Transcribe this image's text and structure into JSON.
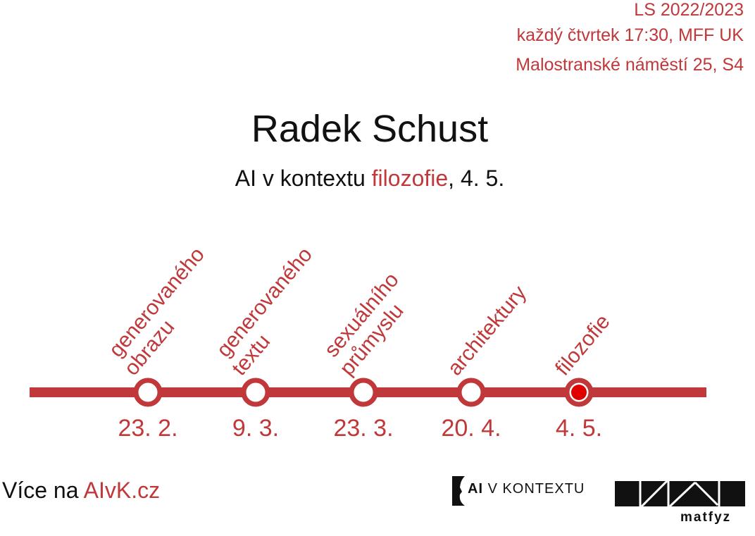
{
  "header": {
    "semester": "LS 2022/2023",
    "schedule": "každý čtvrtek 17:30, MFF UK",
    "address": "Malostranské náměstí 25, S4"
  },
  "speaker": "Radek Schust",
  "subtitle": {
    "prefix": "AI v kontextu ",
    "topic": "filozofie",
    "suffix": ", 4. 5."
  },
  "timeline": {
    "colors": {
      "line": "#c0383a",
      "active": "#e00000"
    },
    "stops": [
      {
        "topic": [
          "generovaného",
          "obrazu"
        ],
        "date": "23. 2.",
        "active": false
      },
      {
        "topic": [
          "generovaného",
          "textu"
        ],
        "date": "9. 3.",
        "active": false
      },
      {
        "topic": [
          "sexuálního",
          "průmyslu"
        ],
        "date": "23. 3.",
        "active": false
      },
      {
        "topic": [
          "architektury"
        ],
        "date": "20. 4.",
        "active": false
      },
      {
        "topic": [
          "filozofie"
        ],
        "date": "4. 5.",
        "active": true
      }
    ]
  },
  "footer": {
    "more_prefix": "Více na ",
    "more_link": "AIvK.cz",
    "logo_ai": "AI",
    "logo_rest": "V KONTEXTU",
    "matfyz": "matfyz"
  }
}
